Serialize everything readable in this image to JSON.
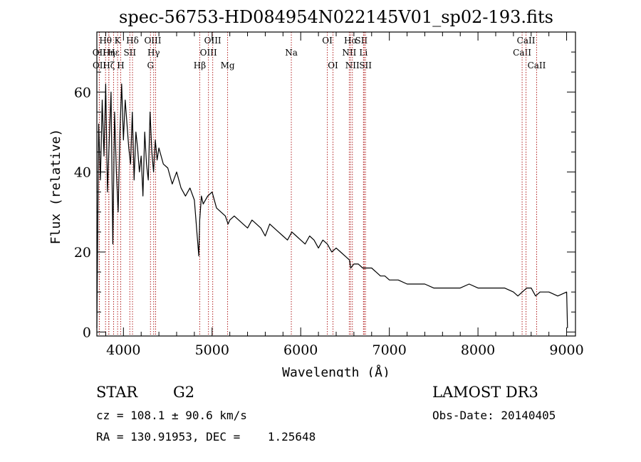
{
  "chart_data": {
    "type": "line",
    "title": "spec-56753-HD084954N022145V01_sp02-193.fits",
    "xlabel": "Wavelength (Å)",
    "ylabel": "Flux (relative)",
    "xlim": [
      3700,
      9100
    ],
    "ylim": [
      -1,
      75
    ],
    "xticks": [
      4000,
      5000,
      6000,
      7000,
      8000,
      9000
    ],
    "yticks": [
      0,
      20,
      40,
      60
    ],
    "grid": false,
    "series": [
      {
        "name": "flux",
        "x": [
          3700,
          3720,
          3740,
          3760,
          3780,
          3800,
          3820,
          3840,
          3860,
          3880,
          3900,
          3920,
          3940,
          3960,
          3980,
          4000,
          4020,
          4040,
          4060,
          4080,
          4100,
          4120,
          4140,
          4160,
          4180,
          4200,
          4220,
          4240,
          4260,
          4280,
          4300,
          4320,
          4340,
          4360,
          4380,
          4400,
          4450,
          4500,
          4550,
          4600,
          4650,
          4700,
          4750,
          4800,
          4850,
          4860,
          4880,
          4900,
          4950,
          5000,
          5050,
          5100,
          5150,
          5180,
          5200,
          5250,
          5300,
          5350,
          5400,
          5450,
          5500,
          5550,
          5600,
          5650,
          5700,
          5750,
          5800,
          5850,
          5900,
          5950,
          6000,
          6050,
          6100,
          6150,
          6200,
          6250,
          6300,
          6350,
          6400,
          6450,
          6500,
          6550,
          6564,
          6600,
          6650,
          6700,
          6750,
          6800,
          6850,
          6900,
          6950,
          7000,
          7100,
          7200,
          7300,
          7400,
          7500,
          7600,
          7700,
          7800,
          7900,
          8000,
          8100,
          8200,
          8300,
          8400,
          8450,
          8500,
          8550,
          8600,
          8650,
          8700,
          8800,
          8900,
          9000,
          9010
        ],
        "values": [
          1,
          52,
          38,
          58,
          44,
          62,
          35,
          48,
          60,
          22,
          55,
          40,
          30,
          50,
          62,
          48,
          58,
          52,
          46,
          42,
          55,
          38,
          50,
          46,
          40,
          44,
          34,
          50,
          42,
          38,
          55,
          45,
          40,
          48,
          43,
          46,
          42,
          41,
          37,
          40,
          36,
          34,
          36,
          33,
          19,
          28,
          34,
          32,
          34,
          35,
          31,
          30,
          29,
          27,
          28,
          29,
          28,
          27,
          26,
          28,
          27,
          26,
          24,
          27,
          26,
          25,
          24,
          23,
          25,
          24,
          23,
          22,
          24,
          23,
          21,
          23,
          22,
          20,
          21,
          20,
          19,
          18,
          16,
          17,
          17,
          16,
          16,
          16,
          15,
          14,
          14,
          13,
          13,
          12,
          12,
          12,
          11,
          11,
          11,
          11,
          12,
          11,
          11,
          11,
          11,
          10,
          9,
          10,
          11,
          11,
          9,
          10,
          10,
          9,
          10,
          1
        ]
      }
    ],
    "lines": [
      {
        "label": "Hθ",
        "x": 3798,
        "row": 0,
        "dx": 0
      },
      {
        "label": "OII",
        "x": 3727,
        "row": 1,
        "dx": 0
      },
      {
        "label": "OII",
        "x": 3729,
        "row": 2,
        "dx": 0
      },
      {
        "label": "Hη",
        "x": 3835,
        "row": 1,
        "dx": 0
      },
      {
        "label": "Hε",
        "x": 3889,
        "row": 1,
        "dx": 0
      },
      {
        "label": "Hζ",
        "x": 3835,
        "row": 2,
        "dx": 0
      },
      {
        "label": "K",
        "x": 3934,
        "row": 0,
        "dx": 0
      },
      {
        "label": "H",
        "x": 3969,
        "row": 2,
        "dx": 0
      },
      {
        "label": "SII",
        "x": 4072,
        "row": 1,
        "dx": 0
      },
      {
        "label": "Hδ",
        "x": 4102,
        "row": 0,
        "dx": 0
      },
      {
        "label": "G",
        "x": 4305,
        "row": 2,
        "dx": 0
      },
      {
        "label": "OIII",
        "x": 4363,
        "row": 0,
        "dx": -4
      },
      {
        "label": "Hγ",
        "x": 4341,
        "row": 1,
        "dx": 0
      },
      {
        "label": "Hβ",
        "x": 4861,
        "row": 2,
        "dx": 0
      },
      {
        "label": "OIII",
        "x": 4959,
        "row": 1,
        "dx": 0
      },
      {
        "label": "OIII",
        "x": 5007,
        "row": 0,
        "dx": 0
      },
      {
        "label": "Mg",
        "x": 5175,
        "row": 2,
        "dx": 0
      },
      {
        "label": "Na",
        "x": 5894,
        "row": 1,
        "dx": 0
      },
      {
        "label": "OI",
        "x": 6300,
        "row": 0,
        "dx": 0
      },
      {
        "label": "OI",
        "x": 6364,
        "row": 2,
        "dx": 0
      },
      {
        "label": "NII",
        "x": 6548,
        "row": 1,
        "dx": 0
      },
      {
        "label": "Hα",
        "x": 6563,
        "row": 0,
        "dx": 0
      },
      {
        "label": "NII",
        "x": 6583,
        "row": 2,
        "dx": 0
      },
      {
        "label": "Li",
        "x": 6708,
        "row": 1,
        "dx": 0
      },
      {
        "label": "SII",
        "x": 6716,
        "row": 0,
        "dx": -4
      },
      {
        "label": "SII",
        "x": 6731,
        "row": 2,
        "dx": 0
      },
      {
        "label": "CaII",
        "x": 8498,
        "row": 1,
        "dx": 0
      },
      {
        "label": "CaII",
        "x": 8542,
        "row": 0,
        "dx": 0
      },
      {
        "label": "CaII",
        "x": 8662,
        "row": 2,
        "dx": 0
      }
    ]
  },
  "info": {
    "object_type": "STAR",
    "subclass": "G2",
    "survey": "LAMOST DR3",
    "cz": "cz = 108.1 ± 90.6 km/s",
    "obs_date": "Obs-Date: 20140405",
    "coords": "RA = 130.91953, DEC =    1.25648"
  },
  "colors": {
    "axis": "#000000",
    "spectrum": "#000000",
    "line_marker": "#b22222"
  }
}
